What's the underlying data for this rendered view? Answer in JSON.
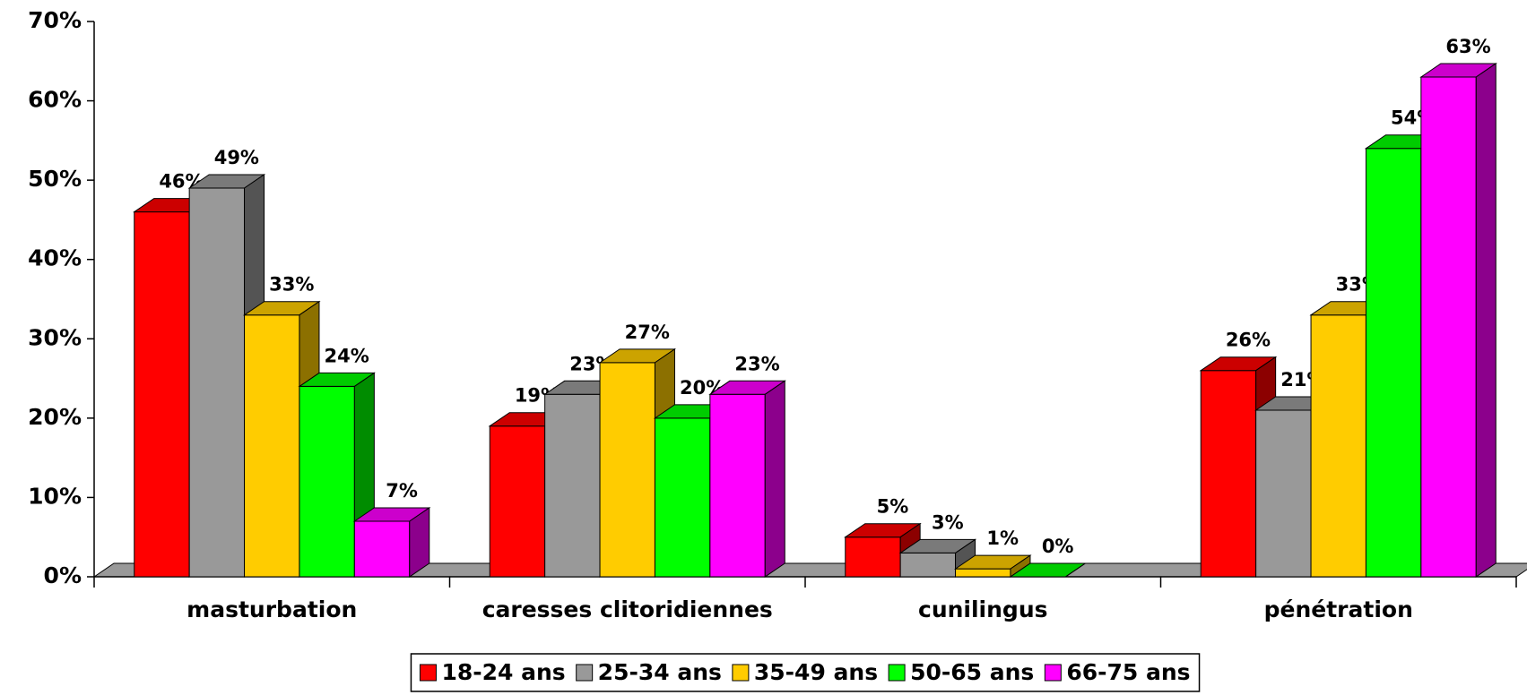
{
  "chart_data": {
    "type": "bar3d",
    "categories": [
      "masturbation",
      "caresses clitoridiennes",
      "cunilingus",
      "pénétration"
    ],
    "series": [
      {
        "name": "18-24 ans",
        "color": "#ff0000",
        "values": [
          46,
          19,
          5,
          26
        ],
        "value_labels": [
          "46%",
          "19%",
          "5%",
          "26%"
        ]
      },
      {
        "name": "25-34 ans",
        "color": "#999999",
        "values": [
          49,
          23,
          3,
          21
        ],
        "value_labels": [
          "49%",
          "23%",
          "3%",
          "21%"
        ]
      },
      {
        "name": "35-49 ans",
        "color": "#ffcc00",
        "values": [
          33,
          27,
          1,
          33
        ],
        "value_labels": [
          "33%",
          "27%",
          "1%",
          "33%"
        ]
      },
      {
        "name": "50-65 ans",
        "color": "#00ff00",
        "values": [
          24,
          20,
          0,
          54
        ],
        "value_labels": [
          "24%",
          "20%",
          "0%",
          "54%"
        ]
      },
      {
        "name": "66-75 ans",
        "color": "#ff00ff",
        "values": [
          7,
          23,
          null,
          63
        ],
        "value_labels": [
          "7%",
          "23%",
          null,
          "63%"
        ]
      }
    ],
    "ylim": [
      0,
      70
    ],
    "yticks": [
      {
        "value": 0,
        "label": "0%"
      },
      {
        "value": 10,
        "label": "10%"
      },
      {
        "value": 20,
        "label": "20%"
      },
      {
        "value": 30,
        "label": "30%"
      },
      {
        "value": 40,
        "label": "40%"
      },
      {
        "value": 50,
        "label": "50%"
      },
      {
        "value": 60,
        "label": "60%"
      },
      {
        "value": 70,
        "label": "70%"
      }
    ],
    "legend": "bottom"
  }
}
